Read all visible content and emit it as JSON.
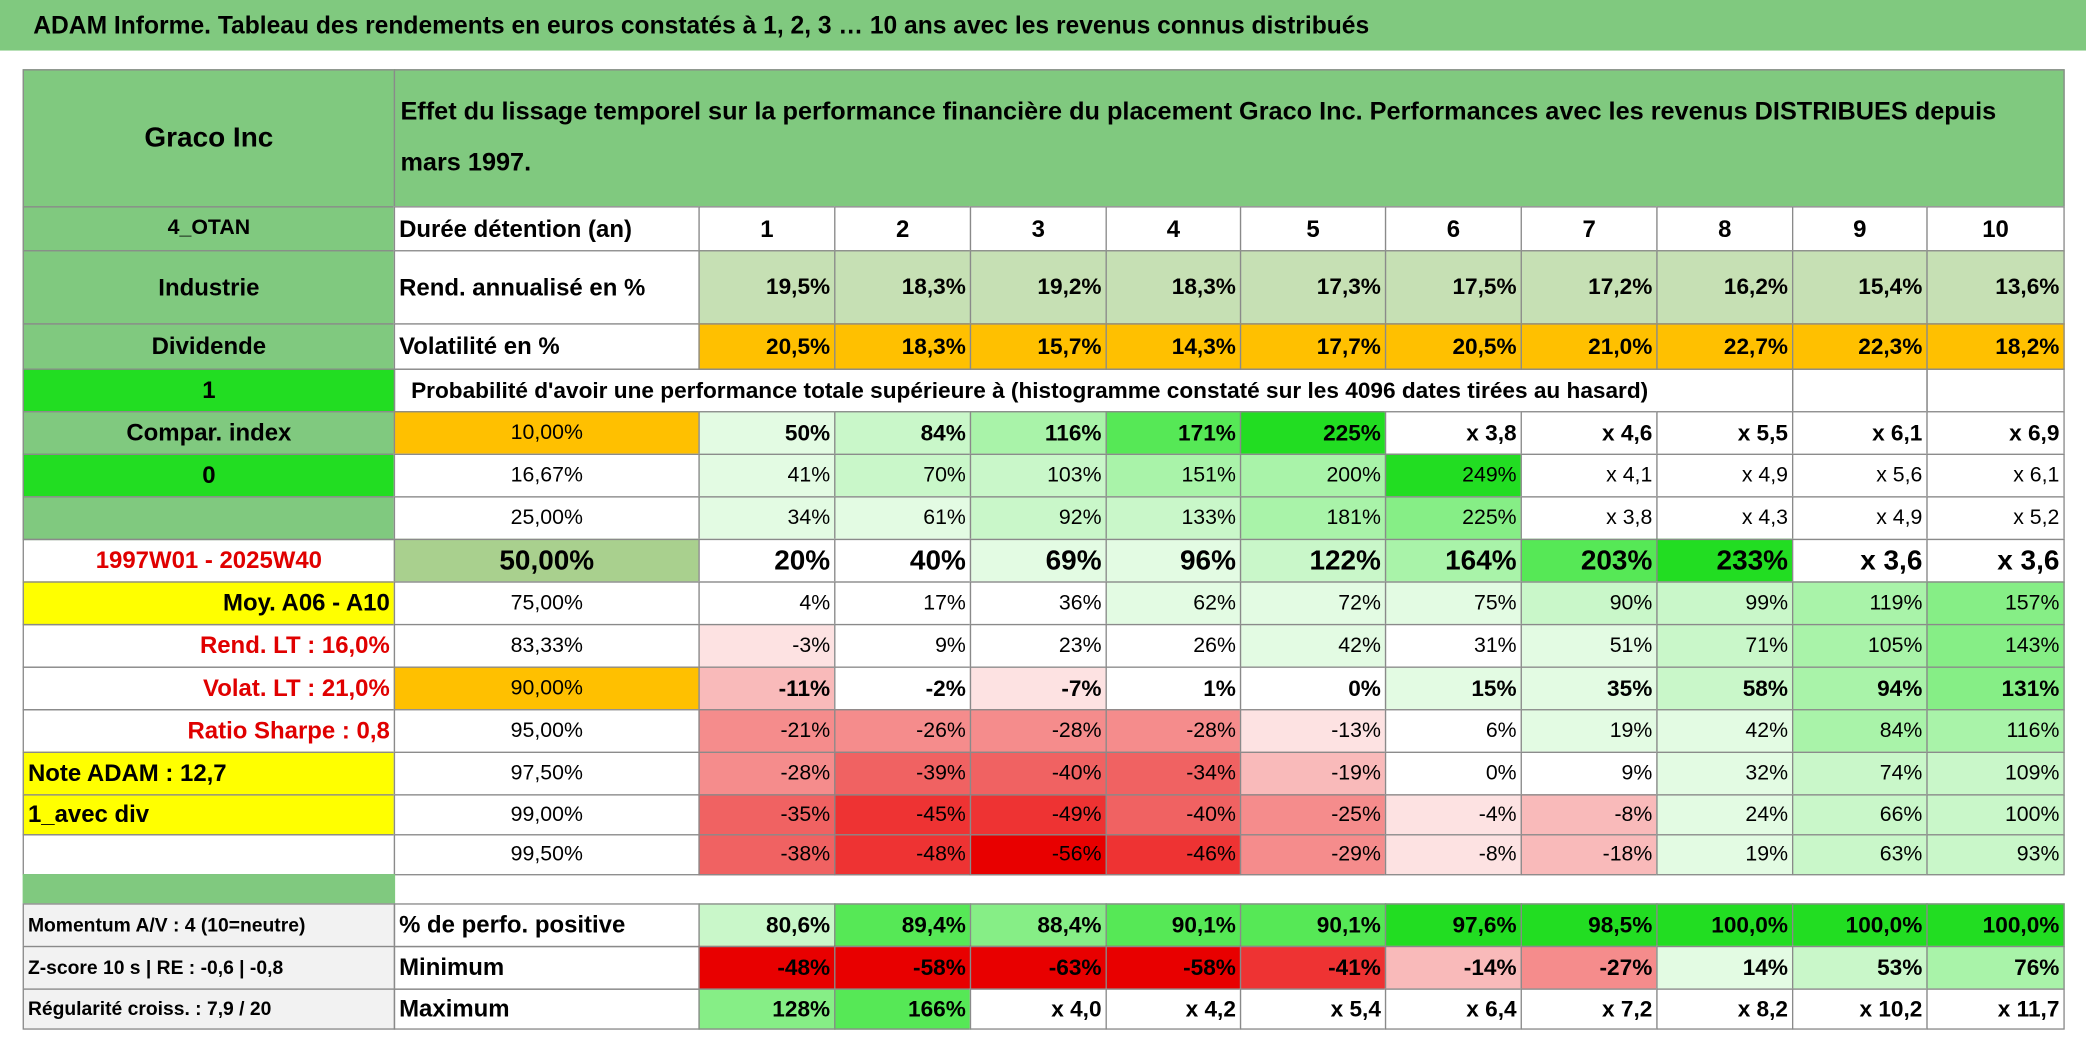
{
  "title": "ADAM Informe. Tableau des rendements en euros constatés à 1, 2, 3 … 10 ans avec les revenus connus distribués",
  "table": {
    "name": "Graco Inc",
    "heading": "Effet du lissage temporel sur la performance financière du placement Graco Inc. Performances avec les revenus DISTRIBUES depuis mars 1997.",
    "rows": [
      {
        "left": "4_OTAN",
        "label": "Durée détention (an)",
        "values": [
          "1",
          "2",
          "3",
          "4",
          "5",
          "6",
          "7",
          "8",
          "9",
          "10"
        ]
      },
      {
        "left": "Industrie",
        "label": "Rend. annualisé en %",
        "values": [
          "19,5%",
          "18,3%",
          "19,2%",
          "18,3%",
          "17,3%",
          "17,5%",
          "17,2%",
          "16,2%",
          "15,4%",
          "13,6%"
        ]
      },
      {
        "left": "Dividende",
        "label": "Volatilité en %",
        "values": [
          "20,5%",
          "18,3%",
          "15,7%",
          "14,3%",
          "17,7%",
          "20,5%",
          "21,0%",
          "22,7%",
          "22,3%",
          "18,2%"
        ]
      },
      {
        "left": "1",
        "label": "Probabilité d'avoir une performance totale supérieure à (histogramme constaté sur les 4096 dates tirées au hasard)"
      },
      {
        "left": "Compar. index",
        "label": "10,00%",
        "values": [
          "50%",
          "84%",
          "116%",
          "171%",
          "225%",
          "x 3,8",
          "x 4,6",
          "x 5,5",
          "x 6,1",
          "x 6,9"
        ]
      },
      {
        "left": "0",
        "label": "16,67%",
        "values": [
          "41%",
          "70%",
          "103%",
          "151%",
          "200%",
          "249%",
          "x 4,1",
          "x 4,9",
          "x 5,6",
          "x 6,1"
        ]
      },
      {
        "label": "25,00%",
        "values": [
          "34%",
          "61%",
          "92%",
          "133%",
          "181%",
          "225%",
          "x 3,8",
          "x 4,3",
          "x 4,9",
          "x 5,2"
        ]
      },
      {
        "left": "1997W01 - 2025W40",
        "label": "50,00%",
        "values": [
          "20%",
          "40%",
          "69%",
          "96%",
          "122%",
          "164%",
          "203%",
          "233%",
          "x 3,6",
          "x 3,6"
        ]
      },
      {
        "left": "Moy. A06 - A10",
        "label": "75,00%",
        "values": [
          "4%",
          "17%",
          "36%",
          "62%",
          "72%",
          "75%",
          "90%",
          "99%",
          "119%",
          "157%"
        ]
      },
      {
        "left": "Rend. LT :    16,0%",
        "label": "83,33%",
        "values": [
          "-3%",
          "9%",
          "23%",
          "26%",
          "42%",
          "31%",
          "51%",
          "71%",
          "105%",
          "143%"
        ]
      },
      {
        "left": "Volat. LT :    21,0%",
        "label": "90,00%",
        "values": [
          "-11%",
          "-2%",
          "-7%",
          "1%",
          "0%",
          "15%",
          "35%",
          "58%",
          "94%",
          "131%"
        ]
      },
      {
        "left": "Ratio Sharpe :    0,8",
        "label": "95,00%",
        "values": [
          "-21%",
          "-26%",
          "-28%",
          "-28%",
          "-13%",
          "6%",
          "19%",
          "42%",
          "84%",
          "116%"
        ]
      },
      {
        "left": "Note ADAM : 12,7",
        "label": "97,50%",
        "values": [
          "-28%",
          "-39%",
          "-40%",
          "-34%",
          "-19%",
          "0%",
          "9%",
          "32%",
          "74%",
          "109%"
        ]
      },
      {
        "left": "1_avec div",
        "label": "99,00%",
        "values": [
          "-35%",
          "-45%",
          "-49%",
          "-40%",
          "-25%",
          "-4%",
          "-8%",
          "24%",
          "66%",
          "100%"
        ]
      },
      {
        "label": "99,50%",
        "values": [
          "-38%",
          "-48%",
          "-56%",
          "-46%",
          "-29%",
          "-8%",
          "-18%",
          "19%",
          "63%",
          "93%"
        ]
      }
    ],
    "summary": [
      {
        "left": "Momentum A/V : 4 (10=neutre)",
        "label": "% de perfo. positive",
        "values": [
          "80,6%",
          "89,4%",
          "88,4%",
          "90,1%",
          "90,1%",
          "97,6%",
          "98,5%",
          "100,0%",
          "100,0%",
          "100,0%"
        ]
      },
      {
        "left": "Z-score 10 s | RE : -0,6 | -0,8",
        "label": "Minimum",
        "values": [
          "-48%",
          "-58%",
          "-63%",
          "-58%",
          "-41%",
          "-14%",
          "-27%",
          "14%",
          "53%",
          "76%"
        ]
      },
      {
        "left": "Régularité croiss. : 7,9 / 20",
        "label": "Maximum",
        "values": [
          "128%",
          "166%",
          "x 4,0",
          "x 4,2",
          "x 5,4",
          "x 6,4",
          "x 7,2",
          "x 8,2",
          "x 10,2",
          "x 11,7"
        ]
      }
    ]
  }
}
